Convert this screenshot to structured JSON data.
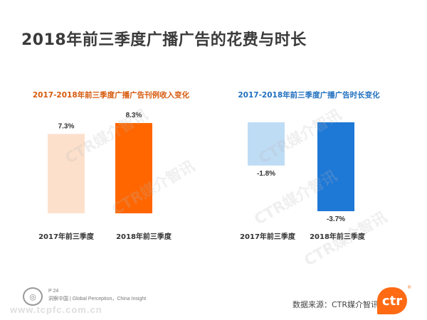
{
  "page": {
    "title": "2018年前三季度广播广告的花费与时长"
  },
  "watermark": "CTR媒介智讯",
  "footer": {
    "page_number": "P 24",
    "tagline": "洞察中国 | Global Perception，China Insight",
    "source": "数据来源：CTR媒介智讯",
    "logo_text": "ctr",
    "site": "www.tcpfc.com.cn"
  },
  "chart_data": [
    {
      "type": "bar",
      "title": "2017-2018年前三季度广播广告刊例收入变化",
      "title_color": "#d65a0c",
      "categories": [
        "2017年前三季度",
        "2018年前三季度"
      ],
      "values": [
        7.3,
        8.3
      ],
      "value_labels": [
        "7.3%",
        "8.3%"
      ],
      "colors": [
        "#fde0cc",
        "#ff6600"
      ],
      "unit": "%",
      "ylim": [
        0,
        9
      ],
      "grid": false
    },
    {
      "type": "bar",
      "title": "2017-2018年前三季度广播广告时长变化",
      "title_color": "#1f6fbf",
      "categories": [
        "2017年前三季度",
        "2018年前三季度"
      ],
      "values": [
        -1.8,
        -3.7
      ],
      "value_labels": [
        "-1.8%",
        "-3.7%"
      ],
      "colors": [
        "#bfdcf5",
        "#1e78d6"
      ],
      "unit": "%",
      "ylim": [
        -4,
        0
      ],
      "grid": false
    }
  ]
}
